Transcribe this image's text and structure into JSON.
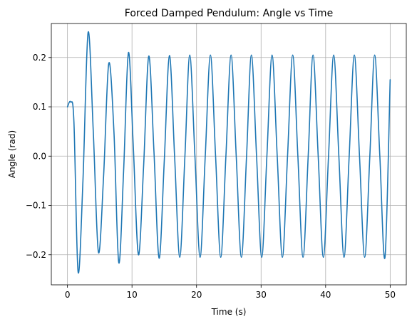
{
  "chart_data": {
    "type": "line",
    "title": "Forced Damped Pendulum: Angle vs Time",
    "xlabel": "Time (s)",
    "ylabel": "Angle (rad)",
    "xlim": [
      -2.5,
      52.5
    ],
    "ylim": [
      -0.261,
      0.269
    ],
    "xticks": [
      0,
      10,
      20,
      30,
      40,
      50
    ],
    "xtick_labels": [
      "0",
      "10",
      "20",
      "30",
      "40",
      "50"
    ],
    "yticks": [
      -0.2,
      -0.1,
      0.0,
      0.1,
      0.2
    ],
    "ytick_labels": [
      "−0.2",
      "−0.1",
      "0.0",
      "0.1",
      "0.2"
    ],
    "grid": true,
    "series_color": "#1f77b4",
    "series": [
      {
        "x": [
          0,
          0.5,
          1.0,
          1.65,
          2.4,
          3.2,
          4.0,
          4.8,
          5.6,
          6.4,
          7.2,
          7.95,
          8.7,
          9.45,
          10.2,
          11.0,
          11.8,
          12.6,
          13.4,
          14.2,
          15.0,
          15.8,
          16.6,
          17.4,
          18.2,
          18.95,
          19.75,
          20.55,
          21.35,
          22.15,
          22.95,
          23.75,
          24.55,
          25.35,
          26.15,
          26.95,
          27.75,
          28.5,
          29.3,
          30.1,
          30.9,
          31.7,
          32.5,
          33.3,
          34.1,
          34.9,
          35.7,
          36.5,
          37.3,
          38.05,
          38.85,
          39.65,
          40.45,
          41.25,
          42.05,
          42.85,
          43.65,
          44.45,
          45.25,
          46.05,
          46.85,
          47.6,
          48.4,
          49.2,
          50.0
        ],
        "y": [
          0.1,
          0.11,
          0.07,
          -0.235,
          -0.05,
          0.251,
          0.05,
          -0.195,
          -0.04,
          0.188,
          0.05,
          -0.216,
          -0.03,
          0.21,
          0.02,
          -0.2,
          -0.02,
          0.203,
          0.01,
          -0.207,
          -0.01,
          0.204,
          0.0,
          -0.205,
          0.0,
          0.205,
          0.0,
          -0.205,
          0.0,
          0.205,
          0.0,
          -0.205,
          0.0,
          0.205,
          0.0,
          -0.205,
          0.0,
          0.205,
          0.0,
          -0.205,
          0.0,
          0.205,
          0.0,
          -0.205,
          0.0,
          0.205,
          0.0,
          -0.205,
          0.0,
          0.205,
          0.0,
          -0.205,
          0.0,
          0.205,
          0.0,
          -0.205,
          0.0,
          0.205,
          0.0,
          -0.205,
          0.0,
          0.205,
          0.0,
          -0.205,
          0.155
        ]
      }
    ]
  }
}
